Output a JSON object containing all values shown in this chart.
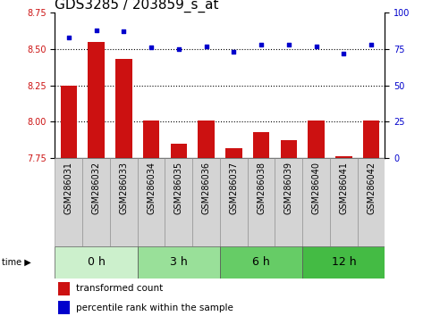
{
  "title": "GDS3285 / 203859_s_at",
  "samples": [
    "GSM286031",
    "GSM286032",
    "GSM286033",
    "GSM286034",
    "GSM286035",
    "GSM286036",
    "GSM286037",
    "GSM286038",
    "GSM286039",
    "GSM286040",
    "GSM286041",
    "GSM286042"
  ],
  "bar_values": [
    8.25,
    8.55,
    8.43,
    8.01,
    7.85,
    8.01,
    7.82,
    7.93,
    7.87,
    8.01,
    7.76,
    8.01
  ],
  "dot_values": [
    83,
    88,
    87,
    76,
    75,
    77,
    73,
    78,
    78,
    77,
    72,
    78
  ],
  "groups": [
    {
      "label": "0 h",
      "start": 0,
      "end": 3,
      "color": "#ccf0cc"
    },
    {
      "label": "3 h",
      "start": 3,
      "end": 6,
      "color": "#99e099"
    },
    {
      "label": "6 h",
      "start": 6,
      "end": 9,
      "color": "#66cc66"
    },
    {
      "label": "12 h",
      "start": 9,
      "end": 12,
      "color": "#44bb44"
    }
  ],
  "ylim_left": [
    7.75,
    8.75
  ],
  "ylim_right": [
    0,
    100
  ],
  "yticks_left": [
    7.75,
    8.0,
    8.25,
    8.5,
    8.75
  ],
  "yticks_right": [
    0,
    25,
    50,
    75,
    100
  ],
  "bar_color": "#cc1111",
  "dot_color": "#0000cc",
  "bar_bottom": 7.75,
  "grid_values": [
    8.0,
    8.25,
    8.5
  ],
  "legend_bar_label": "transformed count",
  "legend_dot_label": "percentile rank within the sample",
  "title_fontsize": 11,
  "tick_fontsize": 7,
  "label_fontsize": 7,
  "group_label_fontsize": 9
}
